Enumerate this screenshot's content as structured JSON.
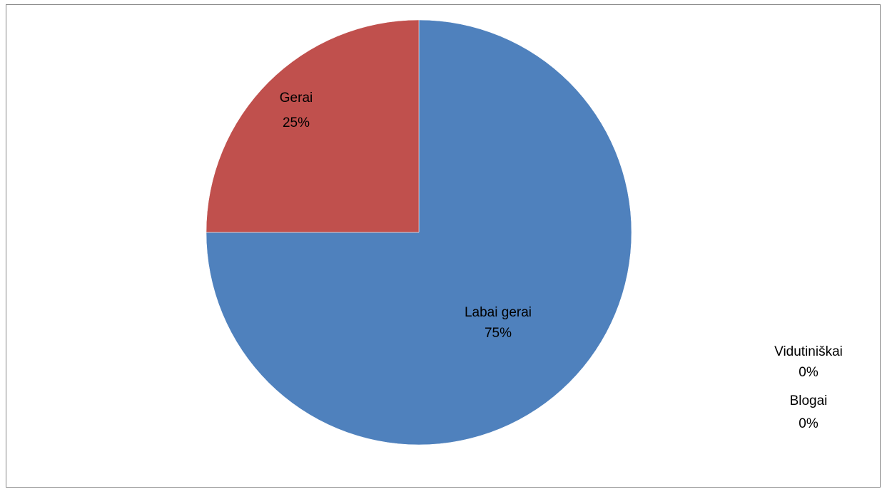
{
  "chart_data": {
    "type": "pie",
    "categories": [
      "Labai gerai",
      "Gerai",
      "Vidutiniškai",
      "Blogai"
    ],
    "values": [
      75,
      25,
      0,
      0
    ],
    "percent_labels": [
      "75%",
      "25%",
      "0%",
      "0%"
    ],
    "colors": [
      "#4F81BD",
      "#C0504D",
      "#9BBB59",
      "#8064A2"
    ],
    "title": "",
    "legend": "none",
    "start_angle": "12 o'clock",
    "direction": "clockwise"
  }
}
